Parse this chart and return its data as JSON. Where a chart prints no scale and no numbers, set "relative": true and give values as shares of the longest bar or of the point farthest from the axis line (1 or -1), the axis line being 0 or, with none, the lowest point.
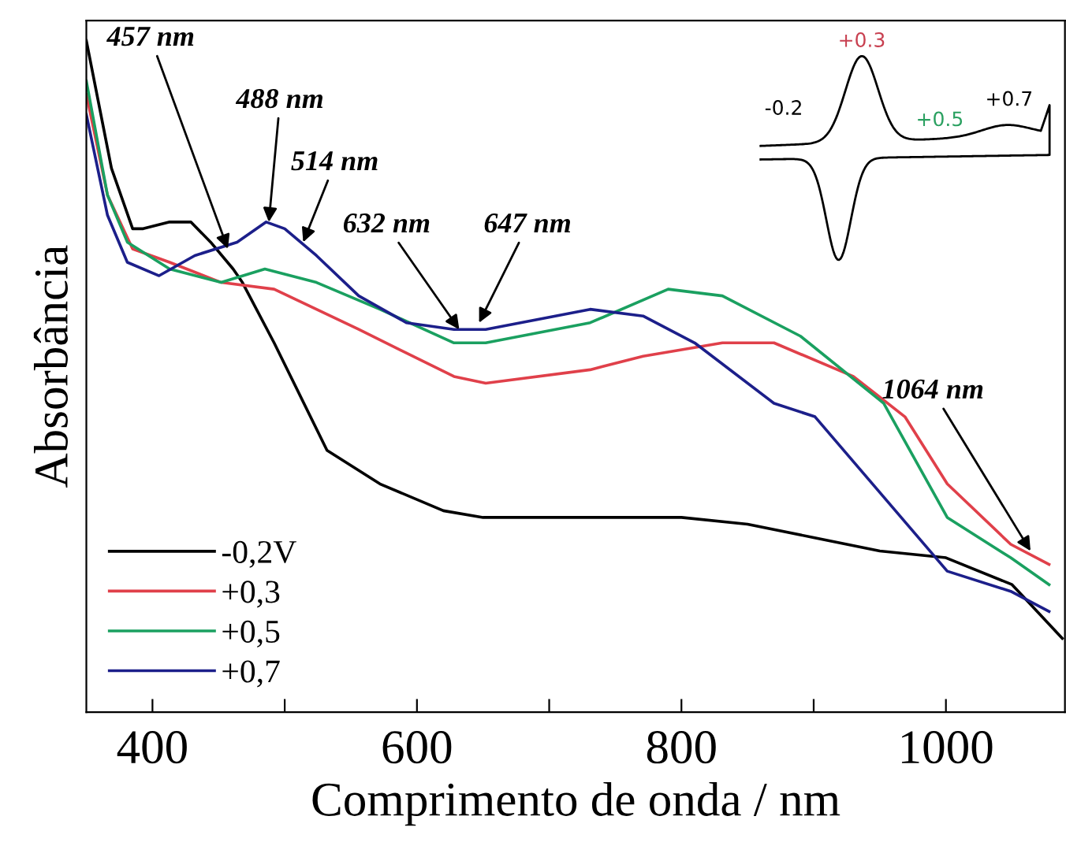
{
  "chart_data": {
    "type": "line",
    "relative": true,
    "xlabel": "Comprimento de onda / nm",
    "ylabel": "Absorbância",
    "xlim": [
      350,
      1090
    ],
    "xticks": [
      400,
      {
        "value": 500,
        "label": null
      },
      600,
      {
        "value": 700,
        "label": null
      },
      800,
      {
        "value": 900,
        "label": null
      },
      1000
    ],
    "legend": "bottom left",
    "grid": false,
    "tick_labels": "x",
    "series": [
      {
        "name": "-0,2V",
        "color": "#000000",
        "x": [
          350,
          369,
          385,
          393,
          413,
          429,
          444,
          461,
          468,
          492,
          532,
          572,
          620,
          650,
          700,
          800,
          850,
          900,
          950,
          1000,
          1050,
          1088
        ],
        "values": [
          1.0,
          0.81,
          0.72,
          0.72,
          0.73,
          0.73,
          0.7,
          0.66,
          0.64,
          0.55,
          0.39,
          0.34,
          0.3,
          0.29,
          0.29,
          0.29,
          0.28,
          0.26,
          0.24,
          0.23,
          0.19,
          0.11
        ]
      },
      {
        "name": "+0,3",
        "color": "#e0404a",
        "x": [
          350,
          366,
          385,
          413,
          452,
          492,
          556,
          628,
          652,
          731,
          771,
          831,
          870,
          930,
          969,
          1001,
          1049,
          1078
        ],
        "values": [
          0.92,
          0.77,
          0.69,
          0.67,
          0.64,
          0.63,
          0.57,
          0.5,
          0.49,
          0.51,
          0.53,
          0.55,
          0.55,
          0.5,
          0.44,
          0.34,
          0.25,
          0.22
        ]
      },
      {
        "name": "+0,5",
        "color": "#1aa060",
        "x": [
          350,
          366,
          381,
          413,
          452,
          485,
          524,
          572,
          628,
          652,
          731,
          790,
          831,
          890,
          953,
          1001,
          1049,
          1078
        ],
        "values": [
          0.94,
          0.77,
          0.7,
          0.66,
          0.64,
          0.66,
          0.64,
          0.6,
          0.55,
          0.55,
          0.58,
          0.63,
          0.62,
          0.56,
          0.46,
          0.29,
          0.23,
          0.19
        ]
      },
      {
        "name": "+0,7",
        "color": "#1c1f8a",
        "x": [
          350,
          366,
          381,
          405,
          432,
          464,
          486,
          500,
          524,
          556,
          592,
          628,
          652,
          731,
          771,
          810,
          870,
          901,
          1001,
          1049,
          1078
        ],
        "values": [
          0.89,
          0.74,
          0.67,
          0.65,
          0.68,
          0.7,
          0.73,
          0.72,
          0.68,
          0.62,
          0.58,
          0.57,
          0.57,
          0.6,
          0.59,
          0.55,
          0.46,
          0.44,
          0.21,
          0.18,
          0.15
        ]
      }
    ],
    "annotations": [
      {
        "text": "457 nm",
        "x": 457,
        "y": 0.69
      },
      {
        "text": "488 nm",
        "x": 488,
        "y": 0.73
      },
      {
        "text": "514 nm",
        "x": 514,
        "y": 0.7
      },
      {
        "text": "632 nm",
        "x": 632,
        "y": 0.57
      },
      {
        "text": "647 nm",
        "x": 647,
        "y": 0.58
      },
      {
        "text": "1064 nm",
        "x": 1064,
        "y": 0.24
      },
      "-0.2",
      "+0.3",
      "+0.5",
      "+0.7"
    ]
  }
}
